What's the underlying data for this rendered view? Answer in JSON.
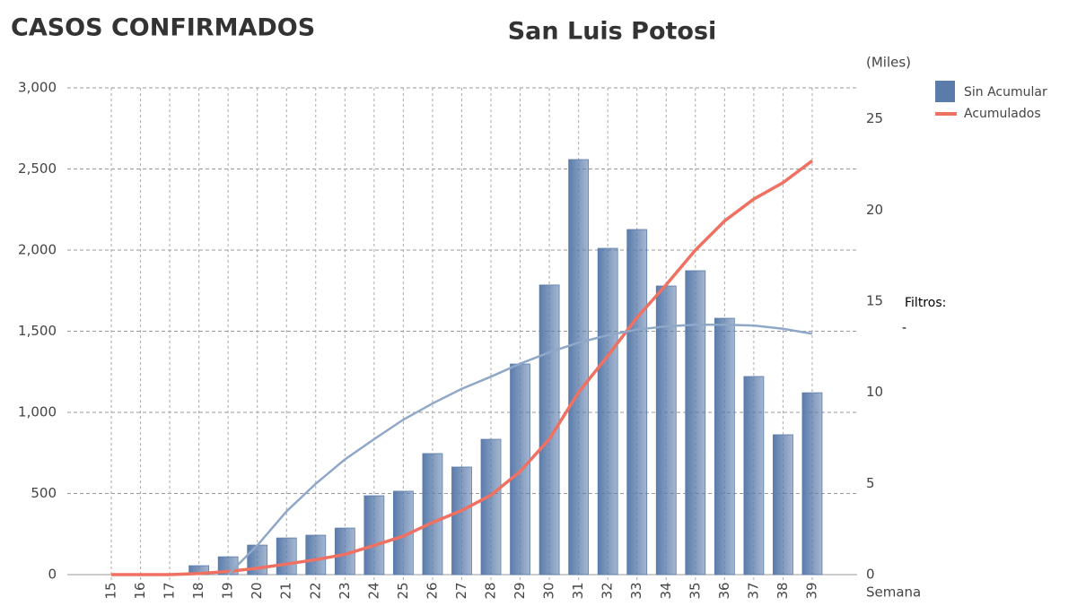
{
  "chart_data": {
    "type": "bar",
    "title": "San Luis Potosi",
    "header": "CASOS CONFIRMADOS",
    "y2_label": "(Miles)",
    "x_label": "Semana",
    "filter_label": "Filtros:",
    "filter_value": "-",
    "categories": [
      "15",
      "16",
      "17",
      "18",
      "19",
      "20",
      "21",
      "22",
      "23",
      "24",
      "25",
      "26",
      "27",
      "28",
      "29",
      "30",
      "31",
      "32",
      "33",
      "34",
      "35",
      "36",
      "37",
      "38",
      "39"
    ],
    "series": [
      {
        "name": "Sin Acumular",
        "color": "#5b7cab",
        "type": "bar",
        "values": [
          0,
          0,
          0,
          55,
          110,
          182,
          226,
          243,
          287,
          486,
          514,
          746,
          663,
          834,
          1298,
          1785,
          2558,
          2011,
          2127,
          1779,
          1873,
          1580,
          1221,
          862,
          1121
        ]
      },
      {
        "name": "Acumulados",
        "color": "#f07062",
        "type": "line",
        "axis": "y2",
        "values": [
          0,
          0,
          0,
          0.06,
          0.17,
          0.35,
          0.58,
          0.82,
          1.11,
          1.6,
          2.11,
          2.86,
          3.52,
          4.36,
          5.66,
          7.44,
          10.0,
          12.0,
          14.1,
          15.9,
          17.8,
          19.4,
          20.6,
          21.5,
          22.7
        ]
      }
    ],
    "trend": {
      "color": "#8fa8c8",
      "values": [
        null,
        null,
        null,
        null,
        0,
        180,
        390,
        560,
        710,
        835,
        955,
        1055,
        1145,
        1220,
        1300,
        1370,
        1430,
        1475,
        1510,
        1530,
        1540,
        1540,
        1535,
        1515,
        1485
      ]
    },
    "ylim": [
      0,
      3000
    ],
    "yticks": [
      0,
      500,
      {
        "value": 1000,
        "label": "1,000"
      },
      {
        "value": 1500,
        "label": "1,500"
      },
      {
        "value": 2000,
        "label": "2,000"
      },
      {
        "value": 2500,
        "label": "2,500"
      },
      {
        "value": 3000,
        "label": "3,000"
      }
    ],
    "y2lim": [
      0,
      26.7
    ],
    "y2ticks": [
      0,
      5,
      10,
      15,
      20,
      25
    ],
    "grid": true
  }
}
